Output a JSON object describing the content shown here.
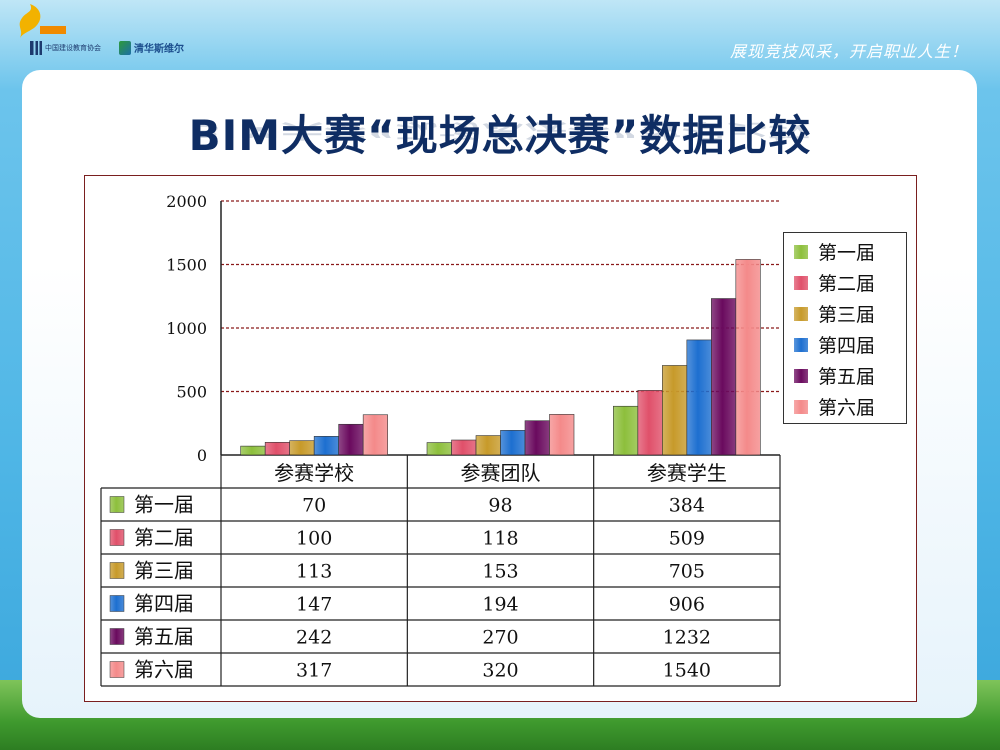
{
  "header": {
    "logo1_text": "中国建设教育协会",
    "logo2_text": "清华斯维尔",
    "slogan": "展现竞技风采，开启职业人生！"
  },
  "title": "BIM大赛“现场总决赛”数据比较",
  "colors": {
    "series": [
      "#8dbf3c",
      "#e0506a",
      "#c79a2a",
      "#1d6fd0",
      "#6a0a5e",
      "#f48a8a"
    ]
  },
  "chart_data": {
    "type": "bar",
    "categories": [
      "参赛学校",
      "参赛团队",
      "参赛学生"
    ],
    "series": [
      {
        "name": "第一届",
        "values": [
          70,
          98,
          384
        ]
      },
      {
        "name": "第二届",
        "values": [
          100,
          118,
          509
        ]
      },
      {
        "name": "第三届",
        "values": [
          113,
          153,
          705
        ]
      },
      {
        "name": "第四届",
        "values": [
          147,
          194,
          906
        ]
      },
      {
        "name": "第五届",
        "values": [
          242,
          270,
          1232
        ]
      },
      {
        "name": "第六届",
        "values": [
          317,
          320,
          1540
        ]
      }
    ],
    "yticks": [
      0,
      500,
      1000,
      1500,
      2000
    ],
    "ylim": [
      0,
      2000
    ],
    "grid": true,
    "legend": "right",
    "data_table": true
  }
}
